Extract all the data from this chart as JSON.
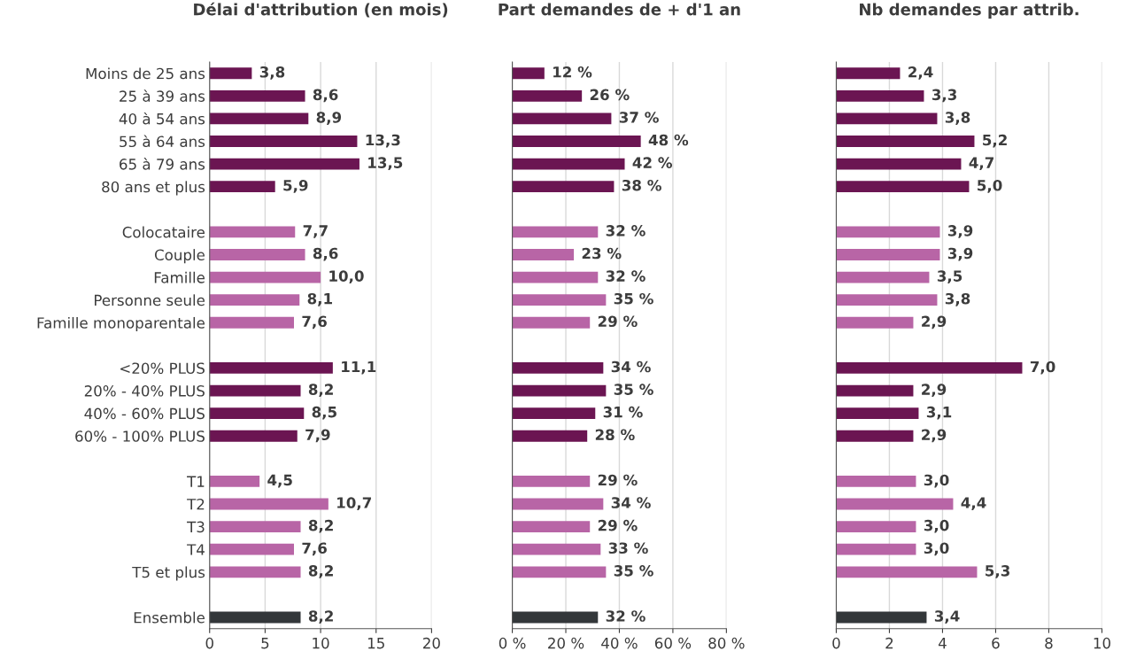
{
  "chart_data": [
    {
      "type": "bar",
      "orientation": "horizontal",
      "title": "Délai d'attribution (en mois)",
      "categories": [
        "Moins de 25 ans",
        "25 à 39 ans",
        "40 à 54 ans",
        "55 à 64 ans",
        "65 à 79 ans",
        "80 ans et plus",
        null,
        "Colocataire",
        "Couple",
        "Famille",
        "Personne seule",
        "Famille monoparentale",
        null,
        "<20% PLUS",
        "20% - 40% PLUS",
        "40% - 60% PLUS",
        "60% - 100% PLUS",
        null,
        "T1",
        "T2",
        "T3",
        "T4",
        "T5 et plus",
        null,
        "Ensemble"
      ],
      "values": [
        3.8,
        8.6,
        8.9,
        13.3,
        13.5,
        5.9,
        null,
        7.7,
        8.6,
        10.0,
        8.1,
        7.6,
        null,
        11.1,
        8.2,
        8.5,
        7.9,
        null,
        4.5,
        10.7,
        8.2,
        7.6,
        8.2,
        null,
        8.2
      ],
      "value_labels": [
        "3,8",
        "8,6",
        "8,9",
        "13,3",
        "13,5",
        "5,9",
        null,
        "7,7",
        "8,6",
        "10,0",
        "8,1",
        "7,6",
        null,
        "11,1",
        "8,2",
        "8,5",
        "7,9",
        null,
        "4,5",
        "10,7",
        "8,2",
        "7,6",
        "8,2",
        null,
        "8,2"
      ],
      "colors": [
        "#6b1552",
        "#6b1552",
        "#6b1552",
        "#6b1552",
        "#6b1552",
        "#6b1552",
        null,
        "#b865a6",
        "#b865a6",
        "#b865a6",
        "#b865a6",
        "#b865a6",
        null,
        "#6b1552",
        "#6b1552",
        "#6b1552",
        "#6b1552",
        null,
        "#b865a6",
        "#b865a6",
        "#b865a6",
        "#b865a6",
        "#b865a6",
        null,
        "#33373a"
      ],
      "xlim": [
        0,
        20
      ],
      "xticks": [
        0,
        5,
        10,
        15,
        20
      ],
      "grid": "x"
    },
    {
      "type": "bar",
      "orientation": "horizontal",
      "title": "Part demandes de + d'1 an",
      "categories": [
        null,
        null,
        null,
        null,
        null,
        null,
        null,
        null,
        null,
        null,
        null,
        null,
        null,
        null,
        null,
        null,
        null,
        null,
        null,
        null,
        null,
        null,
        null,
        null,
        null
      ],
      "values": [
        12,
        26,
        37,
        48,
        42,
        38,
        null,
        32,
        23,
        32,
        35,
        29,
        null,
        34,
        35,
        31,
        28,
        null,
        29,
        34,
        29,
        33,
        35,
        null,
        32
      ],
      "value_labels": [
        "12 %",
        "26 %",
        "37 %",
        "48 %",
        "42 %",
        "38 %",
        null,
        "32 %",
        "23 %",
        "32 %",
        "35 %",
        "29 %",
        null,
        "34 %",
        "35 %",
        "31 %",
        "28 %",
        null,
        "29 %",
        "34 %",
        "29 %",
        "33 %",
        "35 %",
        null,
        "32 %"
      ],
      "colors": [
        "#6b1552",
        "#6b1552",
        "#6b1552",
        "#6b1552",
        "#6b1552",
        "#6b1552",
        null,
        "#b865a6",
        "#b865a6",
        "#b865a6",
        "#b865a6",
        "#b865a6",
        null,
        "#6b1552",
        "#6b1552",
        "#6b1552",
        "#6b1552",
        null,
        "#b865a6",
        "#b865a6",
        "#b865a6",
        "#b865a6",
        "#b865a6",
        null,
        "#33373a"
      ],
      "xlim": [
        0,
        80
      ],
      "xticks": [
        {
          "value": 0,
          "label": "0 %"
        },
        {
          "value": 20,
          "label": "20 %"
        },
        {
          "value": 40,
          "label": "40 %"
        },
        {
          "value": 60,
          "label": "60 %"
        },
        {
          "value": 80,
          "label": "80 %"
        }
      ],
      "grid": "x",
      "tick_labels": "x"
    },
    {
      "type": "bar",
      "orientation": "horizontal",
      "title": "Nb demandes par attrib.",
      "categories": [
        null,
        null,
        null,
        null,
        null,
        null,
        null,
        null,
        null,
        null,
        null,
        null,
        null,
        null,
        null,
        null,
        null,
        null,
        null,
        null,
        null,
        null,
        null,
        null,
        null
      ],
      "values": [
        2.4,
        3.3,
        3.8,
        5.2,
        4.7,
        5.0,
        null,
        3.9,
        3.9,
        3.5,
        3.8,
        2.9,
        null,
        7.0,
        2.9,
        3.1,
        2.9,
        null,
        3.0,
        4.4,
        3.0,
        3.0,
        5.3,
        null,
        3.4
      ],
      "value_labels": [
        "2,4",
        "3,3",
        "3,8",
        "5,2",
        "4,7",
        "5,0",
        null,
        "3,9",
        "3,9",
        "3,5",
        "3,8",
        "2,9",
        null,
        "7,0",
        "2,9",
        "3,1",
        "2,9",
        null,
        "3,0",
        "4,4",
        "3,0",
        "3,0",
        "5,3",
        null,
        "3,4"
      ],
      "colors": [
        "#6b1552",
        "#6b1552",
        "#6b1552",
        "#6b1552",
        "#6b1552",
        "#6b1552",
        null,
        "#b865a6",
        "#b865a6",
        "#b865a6",
        "#b865a6",
        "#b865a6",
        null,
        "#6b1552",
        "#6b1552",
        "#6b1552",
        "#6b1552",
        null,
        "#b865a6",
        "#b865a6",
        "#b865a6",
        "#b865a6",
        "#b865a6",
        null,
        "#33373a"
      ],
      "xlim": [
        0,
        10
      ],
      "xticks": [
        0,
        2,
        4,
        6,
        8,
        10
      ],
      "grid": "x",
      "tick_labels": "x"
    }
  ]
}
